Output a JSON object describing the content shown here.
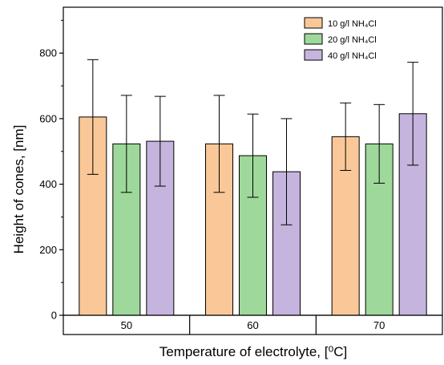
{
  "chart_data": {
    "type": "bar",
    "categories": [
      "50",
      "60",
      "70"
    ],
    "series": [
      {
        "name": "10 g/l NH₄Cl",
        "values": [
          605,
          523,
          545
        ],
        "error": [
          175,
          148,
          103
        ],
        "color": "#FAC898"
      },
      {
        "name": "20 g/l NH₄Cl",
        "values": [
          523,
          487,
          523
        ],
        "error": [
          148,
          127,
          120
        ],
        "color": "#9ED89B"
      },
      {
        "name": "40 g/l NH₄Cl",
        "values": [
          531,
          438,
          615
        ],
        "error": [
          137,
          162,
          157
        ],
        "color": "#C5B4DD"
      }
    ],
    "xlabel": "Temperature of electrolyte, [⁰C]",
    "ylabel": "Height of cones, [nm]",
    "ylim": [
      0,
      940
    ],
    "yticks": [
      "0",
      "200",
      "400",
      "600",
      "800"
    ],
    "grid": false,
    "legend_position": "top-right"
  }
}
